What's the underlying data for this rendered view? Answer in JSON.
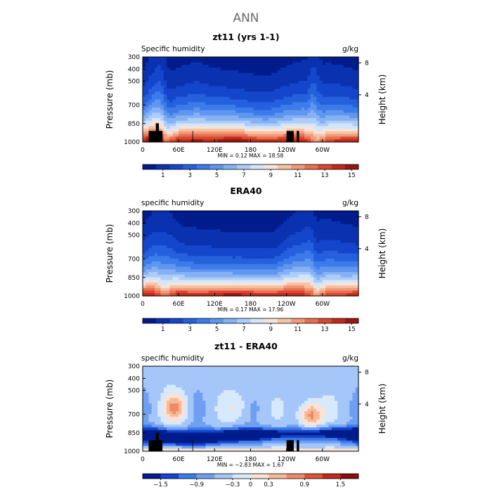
{
  "suptitle": "ANN",
  "palette": {
    "full": [
      "#001c8c",
      "#0a32b0",
      "#1446cc",
      "#2560dd",
      "#3c7bea",
      "#5f96f0",
      "#86b1f4",
      "#adcdf8",
      "#d2e5fb",
      "#f6e4d9",
      "#f6c2a4",
      "#f29a78",
      "#e8704f",
      "#d84730",
      "#c0291c",
      "#9a1410"
    ],
    "diff": [
      "#001c8c",
      "#1446cc",
      "#3c7bea",
      "#6f9ff2",
      "#a5c6f8",
      "#d7e9fc",
      "#fbe2d4",
      "#f6b998",
      "#ee8a66",
      "#dc5436",
      "#c0291c",
      "#8c0d0d"
    ]
  },
  "charts": [
    {
      "title": "zt11 (yrs 1-1)",
      "left_label": "Specific humidity",
      "right_label": "g/kg",
      "ylabel": "Pressure (mb)",
      "y2label": "Height (km)",
      "yticks": [
        "300",
        "400",
        "500",
        "700",
        "850",
        "1000"
      ],
      "y2ticks": [
        "8",
        "4"
      ],
      "xticks": [
        "0",
        "60E",
        "120E",
        "180",
        "120W",
        "60W"
      ],
      "min_text": "MIN =    0.12   MAX =   18.58",
      "cbar": {
        "levels": [
          "1",
          "3",
          "5",
          "7",
          "9",
          "11",
          "13",
          "15"
        ],
        "palette": "full"
      }
    },
    {
      "title": "ERA40",
      "left_label": "specific humidity",
      "right_label": "g/kg",
      "ylabel": "Pressure (mb)",
      "y2label": "Height (km)",
      "yticks": [
        "300",
        "400",
        "500",
        "700",
        "850",
        "1000"
      ],
      "y2ticks": [
        "8",
        "4"
      ],
      "xticks": [
        "0",
        "60E",
        "120E",
        "180",
        "120W",
        "60W"
      ],
      "min_text": "MIN =    0.17   MAX =   17.96",
      "cbar": {
        "levels": [
          "1",
          "3",
          "5",
          "7",
          "9",
          "11",
          "13",
          "15"
        ],
        "palette": "full"
      }
    },
    {
      "title": "zt11 - ERA40",
      "left_label": "specific humidity",
      "right_label": "g/kg",
      "ylabel": "Pressure (mb)",
      "y2label": "Height (km)",
      "yticks": [
        "300",
        "400",
        "500",
        "700",
        "850",
        "1000"
      ],
      "y2ticks": [
        "8",
        "4"
      ],
      "xticks": [
        "0",
        "60E",
        "120E",
        "180",
        "120W",
        "60W"
      ],
      "min_text": "MIN =   −2.83   MAX =    1.67",
      "cbar": {
        "levels": [
          "−1.5",
          "−0.9",
          "−0.3",
          "0",
          "0.3",
          "0.9",
          "1.5"
        ],
        "palette": "diff"
      }
    }
  ],
  "chart_data": [
    {
      "type": "heatmap",
      "title": "zt11 (yrs 1-1)",
      "variable": "Specific humidity",
      "units": "g/kg",
      "x_axis": {
        "label": "",
        "range_deg_east": [
          0,
          360
        ],
        "ticks": [
          "0",
          "60E",
          "120E",
          "180",
          "120W",
          "60W"
        ]
      },
      "y_axis": {
        "label": "Pressure (mb)",
        "range": [
          1000,
          300
        ],
        "ticks": [
          300,
          400,
          500,
          700,
          850,
          1000
        ]
      },
      "y2_axis": {
        "label": "Height (km)",
        "ticks": [
          8,
          4
        ]
      },
      "contour_levels": [
        1,
        3,
        5,
        7,
        9,
        11,
        13,
        15
      ],
      "min": 0.12,
      "max": 18.58,
      "orography": true,
      "surface_values_by_lon": [
        [
          0,
          16
        ],
        [
          20,
          17
        ],
        [
          40,
          13
        ],
        [
          60,
          16
        ],
        [
          90,
          17
        ],
        [
          120,
          16
        ],
        [
          150,
          17
        ],
        [
          180,
          16
        ],
        [
          210,
          16
        ],
        [
          240,
          16
        ],
        [
          270,
          15
        ],
        [
          290,
          12
        ],
        [
          310,
          15
        ],
        [
          330,
          16
        ],
        [
          360,
          16
        ]
      ],
      "humid_plume_top_mb_by_lon": [
        [
          0,
          760
        ],
        [
          30,
          590
        ],
        [
          45,
          750
        ],
        [
          90,
          720
        ],
        [
          150,
          770
        ],
        [
          210,
          780
        ],
        [
          275,
          690
        ],
        [
          285,
          520
        ],
        [
          300,
          700
        ],
        [
          360,
          760
        ]
      ]
    },
    {
      "type": "heatmap",
      "title": "ERA40",
      "variable": "specific humidity",
      "units": "g/kg",
      "x_axis": {
        "label": "",
        "range_deg_east": [
          0,
          360
        ],
        "ticks": [
          "0",
          "60E",
          "120E",
          "180",
          "120W",
          "60W"
        ]
      },
      "y_axis": {
        "label": "Pressure (mb)",
        "range": [
          1000,
          300
        ],
        "ticks": [
          300,
          400,
          500,
          700,
          850,
          1000
        ]
      },
      "y2_axis": {
        "label": "Height (km)",
        "ticks": [
          8,
          4
        ]
      },
      "contour_levels": [
        1,
        3,
        5,
        7,
        9,
        11,
        13,
        15
      ],
      "min": 0.17,
      "max": 17.96,
      "orography": false,
      "surface_values_by_lon": [
        [
          0,
          16
        ],
        [
          20,
          15
        ],
        [
          35,
          12
        ],
        [
          60,
          16
        ],
        [
          120,
          16
        ],
        [
          180,
          16
        ],
        [
          240,
          16
        ],
        [
          280,
          14
        ],
        [
          290,
          12
        ],
        [
          310,
          15
        ],
        [
          360,
          16
        ]
      ],
      "humid_plume_top_mb_by_lon": [
        [
          0,
          760
        ],
        [
          35,
          620
        ],
        [
          60,
          760
        ],
        [
          150,
          800
        ],
        [
          220,
          790
        ],
        [
          280,
          620
        ],
        [
          290,
          700
        ],
        [
          360,
          770
        ]
      ]
    },
    {
      "type": "heatmap",
      "title": "zt11 - ERA40",
      "variable": "specific humidity",
      "units": "g/kg",
      "x_axis": {
        "label": "",
        "range_deg_east": [
          0,
          360
        ],
        "ticks": [
          "0",
          "60E",
          "120E",
          "180",
          "120W",
          "60W"
        ]
      },
      "y_axis": {
        "label": "Pressure (mb)",
        "range": [
          1000,
          300
        ],
        "ticks": [
          300,
          400,
          500,
          700,
          850,
          1000
        ]
      },
      "y2_axis": {
        "label": "Height (km)",
        "ticks": [
          8,
          4
        ]
      },
      "contour_levels": [
        -1.5,
        -0.9,
        -0.3,
        0,
        0.3,
        0.9,
        1.5
      ],
      "min": -2.83,
      "max": 1.67,
      "orography": true,
      "features": [
        {
          "lon": 55,
          "p_mb": 640,
          "sign": "positive",
          "peak": 1.2
        },
        {
          "lon": 158,
          "p_mb": 630,
          "sign": "positive",
          "peak": 0.5
        },
        {
          "lon": 280,
          "p_mb": 700,
          "sign": "positive",
          "peak": 1.5
        },
        {
          "lon": 180,
          "p_mb": 860,
          "sign": "negative",
          "peak": -2.0
        },
        {
          "lon": 70,
          "p_mb": 900,
          "sign": "negative",
          "peak": -2.2
        },
        {
          "lon": 340,
          "p_mb": 850,
          "sign": "negative",
          "peak": -1.8
        }
      ]
    }
  ]
}
